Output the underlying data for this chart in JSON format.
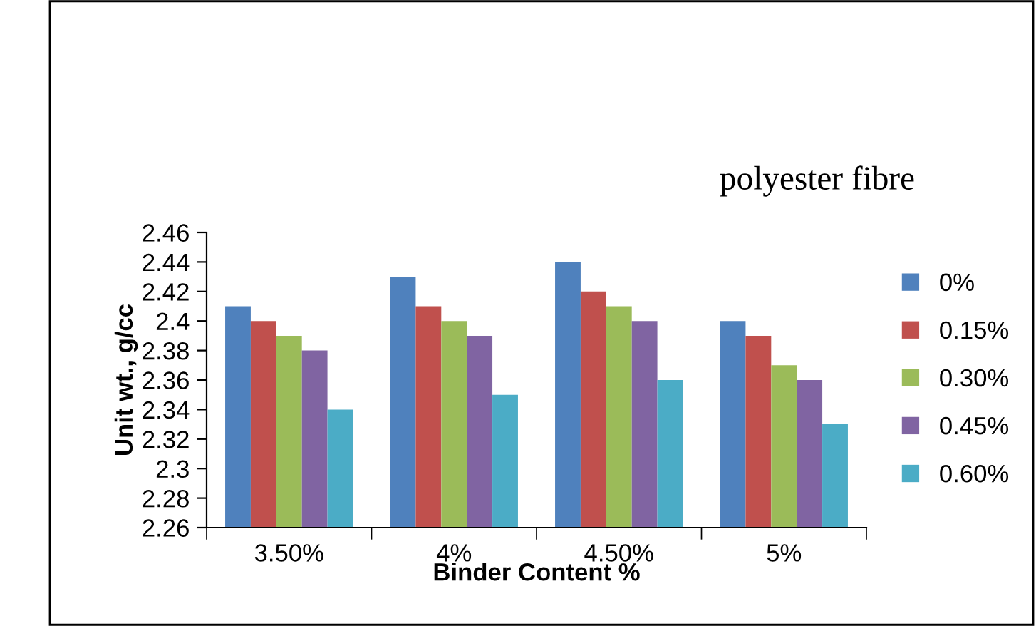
{
  "chart_data": {
    "type": "bar",
    "categories": [
      "3.50%",
      "4%",
      "4.50%",
      "5%"
    ],
    "series": [
      {
        "name": "0%",
        "color": "#4f81bd",
        "values": [
          2.41,
          2.43,
          2.44,
          2.4
        ]
      },
      {
        "name": "0.15%",
        "color": "#c0504d",
        "values": [
          2.4,
          2.41,
          2.42,
          2.39
        ]
      },
      {
        "name": "0.30%",
        "color": "#9bbb59",
        "values": [
          2.39,
          2.4,
          2.41,
          2.37
        ]
      },
      {
        "name": "0.45%",
        "color": "#8064a2",
        "values": [
          2.38,
          2.39,
          2.4,
          2.36
        ]
      },
      {
        "name": "0.60%",
        "color": "#4bacc6",
        "values": [
          2.34,
          2.35,
          2.36,
          2.33
        ]
      }
    ],
    "xlabel": "Binder Content %",
    "ylabel": "Unit wt., g/cc",
    "legend_title": "polyester fibre",
    "ylim": [
      2.26,
      2.46
    ],
    "yticks": [
      2.26,
      2.28,
      2.3,
      2.32,
      2.34,
      2.36,
      2.38,
      2.4,
      2.42,
      2.44,
      2.46
    ],
    "grid": false,
    "legend": "right"
  }
}
